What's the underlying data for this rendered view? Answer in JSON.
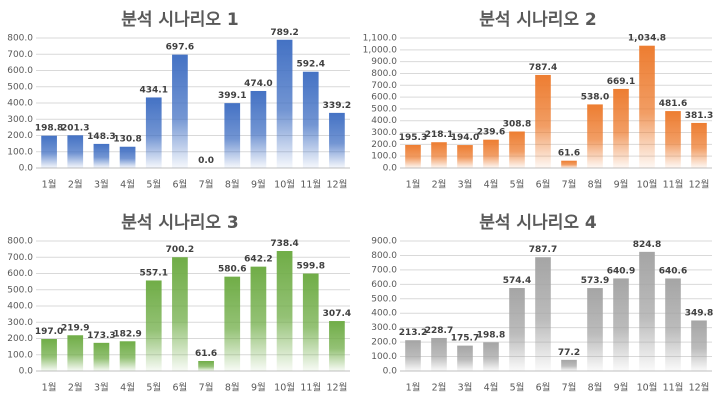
{
  "chart_data": [
    {
      "type": "bar",
      "title": "분석 시나리오 1",
      "categories": [
        "1월",
        "2월",
        "3월",
        "4월",
        "5월",
        "6월",
        "7월",
        "8월",
        "9월",
        "10월",
        "11월",
        "12월"
      ],
      "values": [
        198.8,
        201.3,
        148.3,
        130.8,
        434.1,
        697.6,
        0.0,
        399.1,
        474.0,
        789.2,
        592.4,
        339.2
      ],
      "ylim": [
        0,
        800
      ],
      "yticks": [
        "0.0",
        "100.0",
        "200.0",
        "300.0",
        "400.0",
        "500.0",
        "600.0",
        "700.0",
        "800.0"
      ],
      "ytick_values": [
        0,
        100,
        200,
        300,
        400,
        500,
        600,
        700,
        800
      ],
      "data_labels": [
        "198.8",
        "201.3",
        "148.3",
        "130.8",
        "434.1",
        "697.6",
        "0.0",
        "399.1",
        "474.0",
        "789.2",
        "592.4",
        "339.2"
      ],
      "color": "#4472C4",
      "grid": true
    },
    {
      "type": "bar",
      "title": "분석 시나리오 2",
      "categories": [
        "1월",
        "2월",
        "3월",
        "4월",
        "5월",
        "6월",
        "7월",
        "8월",
        "9월",
        "10월",
        "11월",
        "12월"
      ],
      "values": [
        195.3,
        218.1,
        194.0,
        239.6,
        308.8,
        787.4,
        61.6,
        538.0,
        669.1,
        1034.8,
        481.6,
        381.3
      ],
      "ylim": [
        0,
        1100
      ],
      "yticks": [
        "0.0",
        "100.0",
        "200.0",
        "300.0",
        "400.0",
        "500.0",
        "600.0",
        "700.0",
        "800.0",
        "900.0",
        "1,000.0",
        "1,100.0"
      ],
      "ytick_values": [
        0,
        100,
        200,
        300,
        400,
        500,
        600,
        700,
        800,
        900,
        1000,
        1100
      ],
      "data_labels": [
        "195.3",
        "218.1",
        "194.0",
        "239.6",
        "308.8",
        "787.4",
        "61.6",
        "538.0",
        "669.1",
        "1,034.8",
        "481.6",
        "381.3"
      ],
      "color": "#ED7D31",
      "grid": true
    },
    {
      "type": "bar",
      "title": "분석 시나리오 3",
      "categories": [
        "1월",
        "2월",
        "3월",
        "4월",
        "5월",
        "6월",
        "7월",
        "8월",
        "9월",
        "10월",
        "11월",
        "12월"
      ],
      "values": [
        197.0,
        219.9,
        173.3,
        182.9,
        557.1,
        700.2,
        61.6,
        580.6,
        642.2,
        738.4,
        599.8,
        307.4
      ],
      "ylim": [
        0,
        800
      ],
      "yticks": [
        "0.0",
        "100.0",
        "200.0",
        "300.0",
        "400.0",
        "500.0",
        "600.0",
        "700.0",
        "800.0"
      ],
      "ytick_values": [
        0,
        100,
        200,
        300,
        400,
        500,
        600,
        700,
        800
      ],
      "data_labels": [
        "197.0",
        "219.9",
        "173.3",
        "182.9",
        "557.1",
        "700.2",
        "61.6",
        "580.6",
        "642.2",
        "738.4",
        "599.8",
        "307.4"
      ],
      "color": "#70AD47",
      "grid": true
    },
    {
      "type": "bar",
      "title": "분석 시나리오 4",
      "categories": [
        "1월",
        "2월",
        "3월",
        "4월",
        "5월",
        "6월",
        "7월",
        "8월",
        "9월",
        "10월",
        "11월",
        "12월"
      ],
      "values": [
        213.2,
        228.7,
        175.7,
        198.8,
        574.4,
        787.7,
        77.2,
        573.9,
        640.9,
        824.8,
        640.6,
        349.8
      ],
      "ylim": [
        0,
        900
      ],
      "yticks": [
        "0.0",
        "100.0",
        "200.0",
        "300.0",
        "400.0",
        "500.0",
        "600.0",
        "700.0",
        "800.0",
        "900.0"
      ],
      "ytick_values": [
        0,
        100,
        200,
        300,
        400,
        500,
        600,
        700,
        800,
        900
      ],
      "data_labels": [
        "213.2",
        "228.7",
        "175.7",
        "198.8",
        "574.4",
        "787.7",
        "77.2",
        "573.9",
        "640.9",
        "824.8",
        "640.6",
        "349.8"
      ],
      "color": "#A5A5A5",
      "grid": true
    }
  ]
}
